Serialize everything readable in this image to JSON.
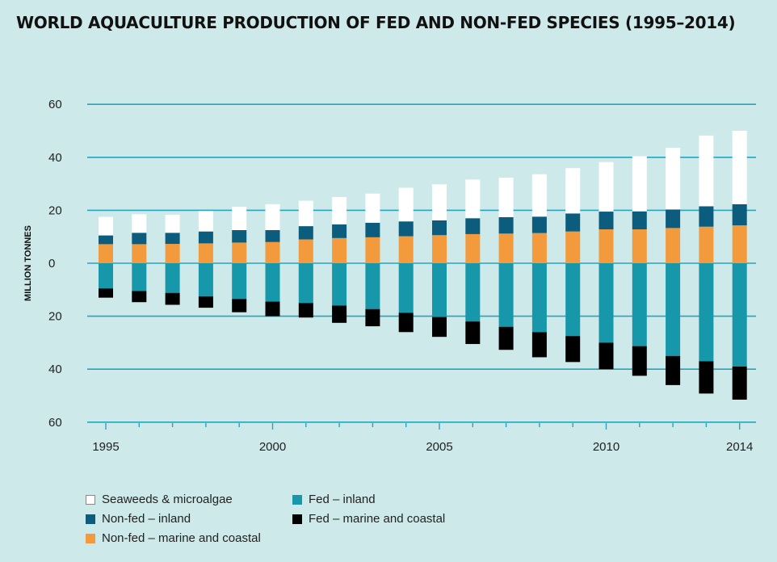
{
  "title": "WORLD AQUACULTURE PRODUCTION OF FED AND NON-FED SPECIES (1995–2014)",
  "chart_data": {
    "type": "bar",
    "stacked": true,
    "diverging": true,
    "title": "WORLD AQUACULTURE PRODUCTION OF FED AND NON-FED SPECIES (1995–2014)",
    "ylabel": "MILLION TONNES",
    "ylim": [
      -60,
      60
    ],
    "yticks": [
      60,
      40,
      20,
      0,
      20,
      40,
      60
    ],
    "yticks_values": [
      60,
      40,
      20,
      0,
      -20,
      -40,
      -60
    ],
    "grid": true,
    "legend_position": "bottom-left",
    "categories": [
      "1995",
      "1996",
      "1997",
      "1998",
      "1999",
      "2000",
      "2001",
      "2002",
      "2003",
      "2004",
      "2005",
      "2006",
      "2007",
      "2008",
      "2009",
      "2010",
      "2011",
      "2012",
      "2013",
      "2014"
    ],
    "xtick_labels": [
      "1995",
      "2000",
      "2005",
      "2010",
      "2014"
    ],
    "series": [
      {
        "name": "Non-fed – marine and coastal",
        "direction": "up",
        "color": "#f39a3c",
        "values": [
          7.2,
          7.2,
          7.3,
          7.5,
          7.8,
          8.0,
          9.0,
          9.5,
          9.8,
          10.2,
          10.6,
          11.0,
          11.2,
          11.4,
          12.0,
          12.8,
          12.8,
          13.3,
          13.8,
          14.3
        ]
      },
      {
        "name": "Non-fed – inland",
        "direction": "up",
        "color": "#0b5c7d",
        "values": [
          3.3,
          4.3,
          4.2,
          4.5,
          4.7,
          4.5,
          5.0,
          5.2,
          5.5,
          5.6,
          5.6,
          6.0,
          6.2,
          6.2,
          6.8,
          6.7,
          6.8,
          7.0,
          7.7,
          8.0
        ]
      },
      {
        "name": "Seaweeds & microalgae",
        "direction": "up",
        "color": "#ffffff",
        "values": [
          7.0,
          7.0,
          6.8,
          7.7,
          8.8,
          9.8,
          9.6,
          10.3,
          11.0,
          12.7,
          13.6,
          14.6,
          14.9,
          16.0,
          17.1,
          18.7,
          20.8,
          23.3,
          26.7,
          27.7
        ]
      },
      {
        "name": "Fed – inland",
        "direction": "down",
        "color": "#1797aa",
        "values": [
          9.5,
          10.5,
          11.2,
          12.5,
          13.5,
          14.5,
          15.0,
          16.0,
          17.3,
          18.7,
          20.3,
          22.0,
          24.0,
          26.0,
          27.5,
          30.0,
          31.3,
          35.0,
          37.0,
          39.0
        ]
      },
      {
        "name": "Fed – marine and coastal",
        "direction": "down",
        "color": "#000000",
        "values": [
          3.5,
          4.2,
          4.5,
          4.3,
          5.0,
          5.5,
          5.5,
          6.5,
          6.5,
          7.3,
          7.5,
          8.5,
          8.7,
          9.5,
          9.8,
          10.0,
          11.2,
          11.0,
          12.2,
          12.5
        ]
      }
    ]
  },
  "legend": [
    {
      "label": "Seaweeds & microalgae",
      "color": "#ffffff"
    },
    {
      "label": "Non-fed – inland",
      "color": "#0b5c7d"
    },
    {
      "label": "Non-fed – marine and coastal",
      "color": "#f39a3c"
    },
    {
      "label": "Fed – inland",
      "color": "#1797aa"
    },
    {
      "label": "Fed – marine and coastal",
      "color": "#000000"
    }
  ],
  "colors": {
    "background": "#cde9e9",
    "gridline": "#2aa4bd"
  }
}
